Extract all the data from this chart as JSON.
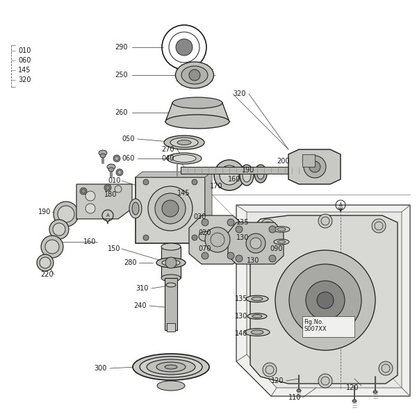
{
  "bg_color": "#ffffff",
  "line_color": "#1a1a1a",
  "fig_no": "Fig.No.\nS007XX"
}
